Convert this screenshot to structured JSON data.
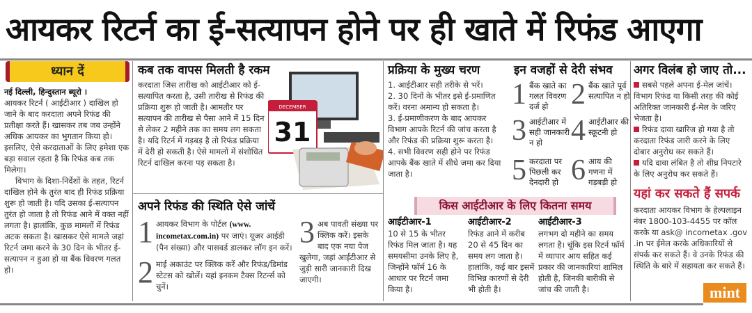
{
  "headline": "आयकर रिटर्न का ई-सत्यापन होने पर ही खाते में रिफंड आएगा",
  "attention": {
    "title": "ध्यान दें",
    "byline": "नई दिल्ली, हिन्दुस्तान ब्यूरो ।",
    "p1": "आयकर रिटर्न ( आईटीआर ) दाखिल हो जाने के बाद करदाता अपने रिफंड की प्रतीक्षा करते हैं। खासकर तब जब उन्होंने अधिक आयकर का भुगतान किया हो। इसलिए, ऐसे करदाताओं के लिए हमेशा एक बड़ा सवाल रहता है कि रिफंड कब तक मिलेगा।",
    "p2": "विभाग के दिशा-निर्देशों के तहत, रिटर्न दाखिल होने के तुरंत बाद ही रिफंड प्रक्रिया शुरू हो जाती है। यदि उसका ई-सत्यापन तुरंत हो जाता है तो रिफंड आने में वक्त नहीं लगता है। हालांकि, कुछ मामलों में रिफंड अटक सकता है। खासकर ऐसे मामले जहां रिटर्न जमा करने के 30 दिन के भीतर ई-सत्यापन न हुआ हो या बैंक विवरण गलत हो।"
  },
  "when": {
    "title": "कब तक वापस मिलती है रकम",
    "text": "करदाता जिस तारीख को आईटीआर को ई-सत्यापित करता है, उसी तारीख से रिफंड की प्रक्रिया शुरू हो जाती है। आमतौर पर सत्यापन की तारीख से पैसा आने में 15 दिन से लेकर 2 महीने तक का समय लग सकता है। यदि रिटर्न में गड़बड़ है तो रिफंड प्रक्रिया में देरी हो सकती है। ऐसे मामलों में संशोधित रिटर्न दाखिल करना पड़ सकता है।",
    "calendar_day": "31",
    "calendar_month": "DECEMBER"
  },
  "check": {
    "title": "अपने रिफंड की स्थिति ऐसे जांचें",
    "steps": [
      {
        "n": "1",
        "pre": "आयकर विभाग के पोर्टल ",
        "link": "(www. incometax.com.in)",
        "post": " पर जाएं। यूजर आईडी (पैन संख्या) और पासवर्ड डालकर लॉग इन करें।"
      },
      {
        "n": "2",
        "text": "माई अकाउंट पर क्लिक करें और रिफंड/डिमांड स्टेटस को खोलें। यहां इनकम टैक्स रिटर्न्स को चुनें।"
      },
      {
        "n": "3",
        "text": "अब पावती संख्या पर क्लिक करें। इसके बाद एक नया पेज खुलेगा, जहां आईटीआर से जुड़ी सारी जानकारी दिख जाएगी।"
      }
    ]
  },
  "process": {
    "title": "प्रक्रिया के मुख्य चरण",
    "steps": [
      "1. आईटीआर सही तरीके से भरें।",
      "2. 30 दिनों के भीतर इसे ई-प्रमाणित करें। वरना अमान्य हो सकता है।",
      "3. ई-प्रमाणीकरण के बाद आयकर विभाग आपके रिटर्न की जांच करता है और रिफंड की प्रक्रिया शुरू करता है।",
      "4. सभी विवरण सही होने पर रिफंड आपके बैंक खाते में सीधे जमा कर दिया जाता है।"
    ]
  },
  "delays": {
    "title": "इन वजहों से देरी संभव",
    "items": [
      {
        "n": "1",
        "text": "बैंक खाते का गलत विवरण दर्ज हो"
      },
      {
        "n": "2",
        "text": "बैंक खाते पूर्व सत्यापित न हो"
      },
      {
        "n": "3",
        "text": "आईटीआर में सही जानकारी न हो"
      },
      {
        "n": "4",
        "text": "आईटीआर की स्क्रूटनी हो"
      },
      {
        "n": "5",
        "text": "करदाता पर पिछली कर देनदारी हो"
      },
      {
        "n": "6",
        "text": "आय की गणना में गड़बड़ी हो"
      }
    ]
  },
  "itr": {
    "title": "किस आईटीआर के लिए कितना समय",
    "items": [
      {
        "name": "आईटीआर-1",
        "text": "10 से 15 के भीतर रिफंड मिल जाता है। यह समयसीमा उनके लिए है, जिन्होंने फॉर्म 16 के आधार पर रिटर्न जमा किया है।"
      },
      {
        "name": "आईटीआर-2",
        "text": "रिफंड आने में करीब 20 से 45 दिन का समय लग जाता है। हालांकि, कई बार इसमें विभिन्न कारणों से देरी भी होती है।"
      },
      {
        "name": "आईटीआर-3",
        "text": "लगभग दो महीने का समय लगता है। चूंकि इस रिटर्न फॉर्म में व्यापार आय सहित कई प्रकार की जानकारियां शामिल होती है, जिनकी बारीकी से जांच की जाती है।"
      }
    ]
  },
  "ifdelay": {
    "title": "अगर विलंब हो जाए तो...",
    "items": [
      "सबसे पहले अपना ई-मेल जांचें। विभाग रिफंड या किसी तरह की कोई अतिरिक्त जानकारी ई-मेल के जरिए भेजता है।",
      "रिफंड दावा खारिज हो गया है तो करदाता रिफंड जारी करने के लिए दोबार अनुरोध कर सकते हैं।",
      "यदि दावा लंबित है तो शीघ्र निपटारे के लिए अनुरोध कर सकते हैं।"
    ]
  },
  "contact": {
    "title": "यहां कर सकते हैं सपर्क",
    "text": "करदाता आयकर विभाग के हेल्पलाइन नंबर 1800-103-4455 पर कॉल करके या ask@ incometax .gov .in पर ईमेल करके अधिकारियों से संपर्क कर सकते हैं। वे उनके रिफंड की स्थिति के बारे में सहायता कर सकते हैं।"
  },
  "logo": "mint",
  "colors": {
    "accent_red": "#c41e3a",
    "attention_yellow": "#f7c91c",
    "itr_pink": "#f6dbe3",
    "mint_orange": "#e98c1d"
  }
}
